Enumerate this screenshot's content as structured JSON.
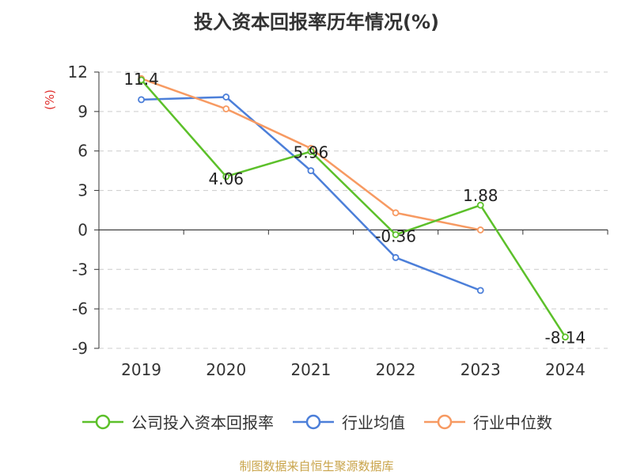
{
  "chart_data": {
    "type": "line",
    "title": "投入资本回报率历年情况(%)",
    "ylabel": "(%)",
    "xlabel": "",
    "categories": [
      "2019",
      "2020",
      "2021",
      "2022",
      "2023",
      "2024"
    ],
    "ylim": [
      -9,
      12
    ],
    "yticks": [
      12,
      9,
      6,
      3,
      0,
      -3,
      -6,
      -9
    ],
    "grid": true,
    "legend_position": "bottom",
    "series": [
      {
        "name": "公司投入资本回报率",
        "color": "#5cc02a",
        "values": [
          11.4,
          4.06,
          5.96,
          -0.36,
          1.88,
          -8.14
        ],
        "labels": [
          "11.4",
          "4.06",
          "5.96",
          "-0.36",
          "1.88",
          "-8.14"
        ]
      },
      {
        "name": "行业均值",
        "color": "#4c7fd9",
        "values": [
          9.9,
          10.1,
          4.5,
          -2.1,
          -4.6,
          null
        ]
      },
      {
        "name": "行业中位数",
        "color": "#f79a62",
        "values": [
          11.5,
          9.2,
          6.2,
          1.3,
          0.0,
          null
        ]
      }
    ]
  },
  "footer": {
    "source": "制图数据来自恒生聚源数据库"
  }
}
